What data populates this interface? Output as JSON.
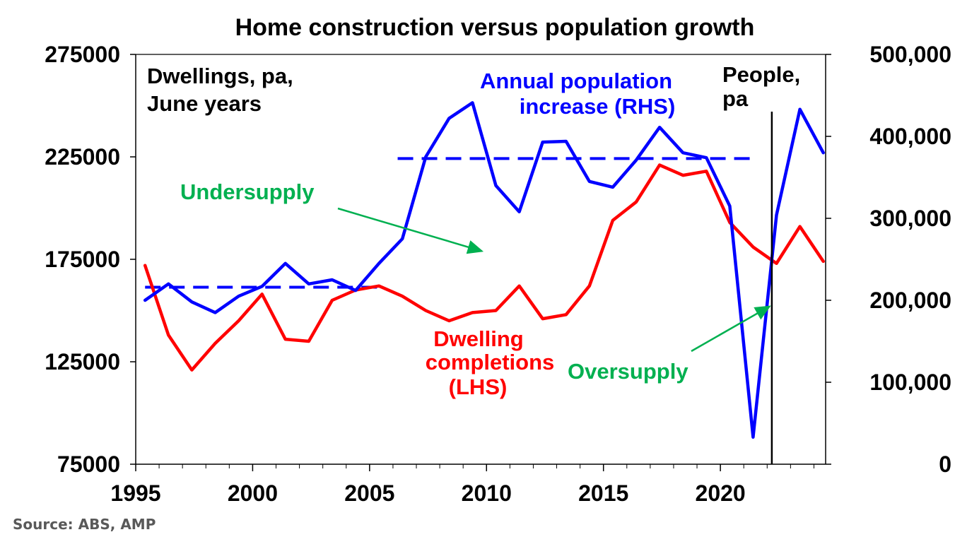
{
  "chart_data": {
    "type": "line",
    "title": "Home construction versus population growth",
    "left_axis_label": [
      "Dwellings, pa,",
      "June years"
    ],
    "right_axis_label": [
      "People,",
      "pa"
    ],
    "x_ticks": [
      "1995",
      "2000",
      "2005",
      "2010",
      "2015",
      "2020"
    ],
    "x_range": [
      1995,
      2024.5
    ],
    "left_ylim": [
      75000,
      275000
    ],
    "left_ticks": [
      "275000",
      "225000",
      "175000",
      "125000",
      "75000"
    ],
    "right_ylim": [
      0,
      500000
    ],
    "right_ticks": [
      "500,000",
      "400,000",
      "300,000",
      "200,000",
      "100,000",
      "0"
    ],
    "series": [
      {
        "name": "Dwelling completions (LHS)",
        "axis": "left",
        "color": "#ff0000",
        "label_lines": [
          "Dwelling",
          "completions",
          "(LHS)"
        ],
        "x": [
          1995.4,
          1996.4,
          1997.4,
          1998.4,
          1999.4,
          2000.4,
          2001.4,
          2002.4,
          2003.4,
          2004.4,
          2005.4,
          2006.4,
          2007.4,
          2008.4,
          2009.4,
          2010.4,
          2011.4,
          2012.4,
          2013.4,
          2014.4,
          2015.4,
          2016.4,
          2017.4,
          2018.4,
          2019.4,
          2020.4,
          2021.4,
          2022.4,
          2023.4,
          2024.4
        ],
        "y": [
          172000,
          138000,
          121000,
          134000,
          145000,
          158000,
          136000,
          135000,
          155000,
          160000,
          162000,
          157000,
          150000,
          145000,
          149000,
          150000,
          162000,
          146000,
          148000,
          162000,
          194000,
          203000,
          221000,
          216000,
          218000,
          193000,
          181000,
          173000,
          191000,
          174000
        ]
      },
      {
        "name": "Annual population increase (RHS)",
        "axis": "right",
        "color": "#0000ff",
        "label_lines": [
          "Annual population",
          "increase (RHS)"
        ],
        "x": [
          1995.4,
          1996.4,
          1997.4,
          1998.4,
          1999.4,
          2000.4,
          2001.4,
          2002.4,
          2003.4,
          2004.4,
          2005.4,
          2006.4,
          2007.4,
          2008.4,
          2009.4,
          2010.4,
          2011.4,
          2012.4,
          2013.4,
          2014.4,
          2015.4,
          2016.4,
          2017.4,
          2018.4,
          2019.4,
          2020.4,
          2021.4,
          2022.4,
          2023.4,
          2024.4
        ],
        "y": [
          200000,
          220000,
          198000,
          185000,
          205000,
          217000,
          245000,
          220000,
          225000,
          212000,
          245000,
          275000,
          375000,
          422000,
          441000,
          340000,
          308000,
          393000,
          394000,
          345000,
          338000,
          371000,
          411000,
          380000,
          374000,
          315000,
          33000,
          304000,
          433000,
          380000
        ]
      }
    ],
    "average_lines": [
      {
        "axis": "right",
        "color": "#0000ff",
        "x_start": 1995.4,
        "x_end": 2005.4,
        "y": 216000
      },
      {
        "axis": "right",
        "color": "#0000ff",
        "x_start": 2006.2,
        "x_end": 2021.4,
        "y": 373000
      }
    ],
    "vertical_line": {
      "x": 2022.2,
      "color": "#000000"
    },
    "annotations": [
      {
        "text": "Undersupply",
        "color": "#00b050",
        "arrow_to": {
          "x": 2009.8,
          "axis": "left",
          "y": 179000
        }
      },
      {
        "text": "Oversupply",
        "color": "#00b050",
        "arrow_to": {
          "x": 2022.1,
          "axis": "left",
          "y": 152000
        }
      }
    ],
    "grid": false,
    "legend": "none"
  },
  "source": "Source: ABS, AMP"
}
